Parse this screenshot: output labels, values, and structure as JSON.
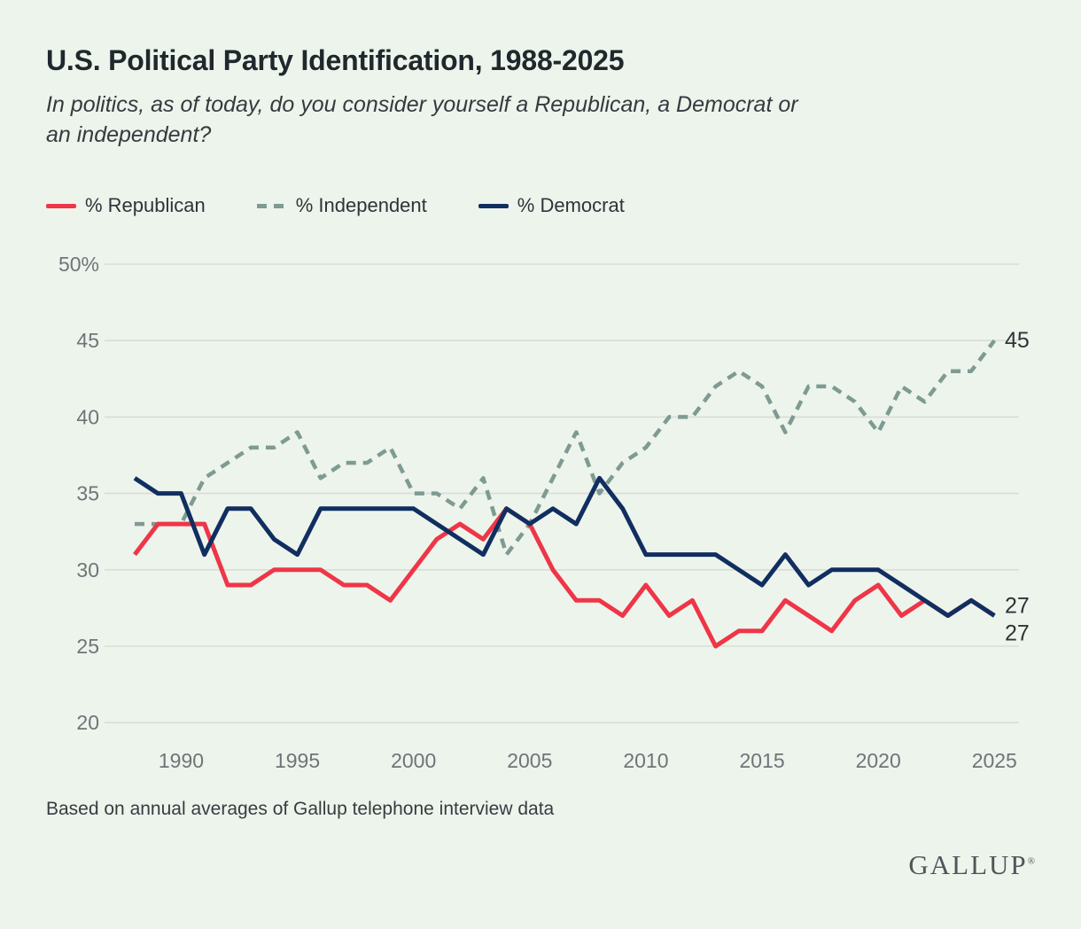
{
  "page": {
    "title": "U.S. Political Party Identification, 1988-2025",
    "subtitle": "In politics, as of today, do you consider yourself a Republican, a Democrat or\nan independent?",
    "footnote": "Based on annual averages of Gallup telephone interview data",
    "logo_text": "GALLUP",
    "logo_reg": "®"
  },
  "colors": {
    "background": "#EDF4EB",
    "gridline": "#D8DED6",
    "republican": "#EE3648",
    "independent": "#7E9B93",
    "democrat": "#112E61",
    "tick_label": "#6E757A",
    "end_label": "#2E3438",
    "title": "#1F282D"
  },
  "legend": [
    {
      "label": "% Republican",
      "color": "#EE3648",
      "style": "solid"
    },
    {
      "label": "% Independent",
      "color": "#7E9B93",
      "style": "dashed"
    },
    {
      "label": "% Democrat",
      "color": "#112E61",
      "style": "solid"
    }
  ],
  "chart_data": {
    "type": "line",
    "title": "U.S. Political Party Identification, 1988-2025",
    "x": [
      1988,
      1989,
      1990,
      1991,
      1992,
      1993,
      1994,
      1995,
      1996,
      1997,
      1998,
      1999,
      2000,
      2001,
      2002,
      2003,
      2004,
      2005,
      2006,
      2007,
      2008,
      2009,
      2010,
      2011,
      2012,
      2013,
      2014,
      2015,
      2016,
      2017,
      2018,
      2019,
      2020,
      2021,
      2022,
      2023,
      2024,
      2025
    ],
    "series": [
      {
        "name": "% Republican",
        "color": "#EE3648",
        "dashed": false,
        "values": [
          31,
          33,
          33,
          33,
          29,
          29,
          30,
          30,
          30,
          29,
          29,
          28,
          30,
          32,
          33,
          32,
          34,
          33,
          30,
          28,
          28,
          27,
          29,
          27,
          28,
          25,
          26,
          26,
          28,
          27,
          26,
          28,
          29,
          27,
          28,
          27,
          28,
          27
        ]
      },
      {
        "name": "% Independent",
        "color": "#7E9B93",
        "dashed": true,
        "values": [
          33,
          33,
          33,
          36,
          37,
          38,
          38,
          39,
          36,
          37,
          37,
          38,
          35,
          35,
          34,
          36,
          31,
          33,
          36,
          39,
          35,
          37,
          38,
          40,
          40,
          42,
          43,
          42,
          39,
          42,
          42,
          41,
          39,
          42,
          41,
          43,
          43,
          45
        ]
      },
      {
        "name": "% Democrat",
        "color": "#112E61",
        "dashed": false,
        "values": [
          36,
          35,
          35,
          31,
          34,
          34,
          32,
          31,
          34,
          34,
          34,
          34,
          34,
          33,
          32,
          31,
          34,
          33,
          34,
          33,
          36,
          34,
          31,
          31,
          31,
          31,
          30,
          29,
          31,
          29,
          30,
          30,
          30,
          29,
          28,
          27,
          28,
          27
        ]
      }
    ],
    "x_tick_labels": [
      1990,
      1995,
      2000,
      2005,
      2010,
      2015,
      2020,
      2025
    ],
    "y_tick_labels": [
      "50%",
      "45",
      "40",
      "35",
      "30",
      "25",
      "20"
    ],
    "y_tick_values": [
      50,
      45,
      40,
      35,
      30,
      25,
      20
    ],
    "ylim": [
      20,
      50
    ],
    "grid": true,
    "legend_position": "top",
    "end_labels": [
      {
        "text": "45",
        "series": "% Independent"
      },
      {
        "text": "27",
        "series": "% Republican"
      },
      {
        "text": "27",
        "series": "% Democrat"
      }
    ]
  }
}
